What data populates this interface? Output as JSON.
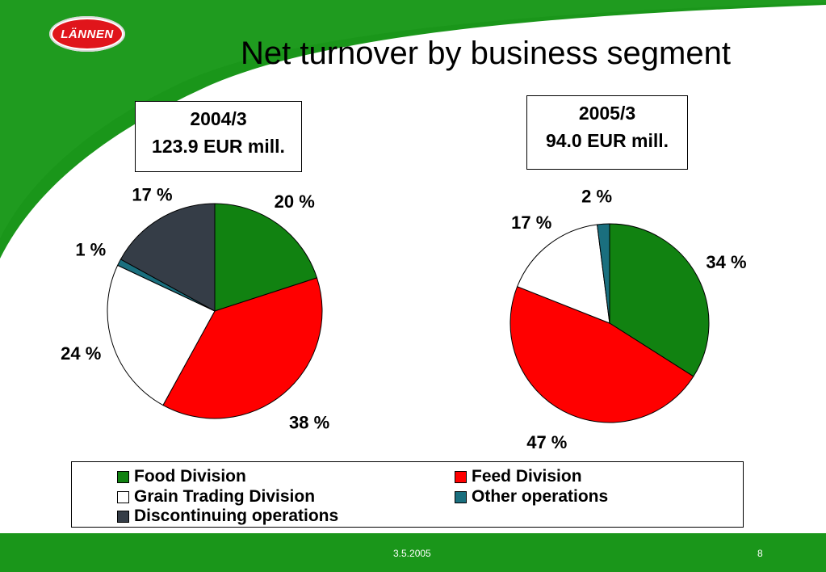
{
  "title": "Net turnover by business segment",
  "logo_text": "LÄNNEN",
  "colors": {
    "brand_green": "#1a961a",
    "food": "#118211",
    "feed": "#ff0000",
    "grain": "#ffffff",
    "other": "#1a6f7e",
    "discontinuing": "#353d47"
  },
  "legend": {
    "food": "Food Division",
    "feed": "Feed Division",
    "grain": "Grain Trading Division",
    "other": "Other operations",
    "discontinuing": "Discontinuing operations"
  },
  "chart_data": [
    {
      "type": "pie",
      "period": "2004/3",
      "total": "123.9 EUR mill.",
      "slices": [
        {
          "key": "food",
          "value": 20,
          "label": "20 %"
        },
        {
          "key": "feed",
          "value": 38,
          "label": "38 %"
        },
        {
          "key": "grain",
          "value": 24,
          "label": "24 %"
        },
        {
          "key": "other",
          "value": 1,
          "label": "1 %"
        },
        {
          "key": "discontinuing",
          "value": 17,
          "label": "17 %"
        }
      ]
    },
    {
      "type": "pie",
      "period": "2005/3",
      "total": "94.0 EUR mill.",
      "slices": [
        {
          "key": "food",
          "value": 34,
          "label": "34 %"
        },
        {
          "key": "feed",
          "value": 47,
          "label": "47 %"
        },
        {
          "key": "grain",
          "value": 17,
          "label": "17 %"
        },
        {
          "key": "other",
          "value": 2,
          "label": "2 %"
        }
      ]
    }
  ],
  "footer": {
    "date": "3.5.2005",
    "page": "8"
  }
}
